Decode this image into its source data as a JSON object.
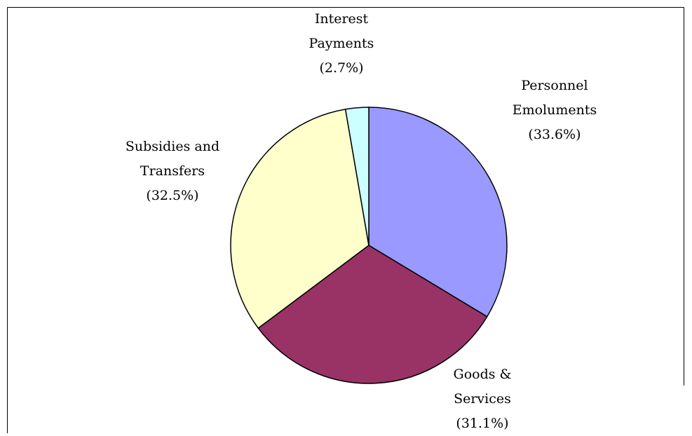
{
  "chart_data": {
    "type": "pie",
    "categories": [
      "Personnel Emoluments",
      "Goods & Services",
      "Subsidies and Transfers",
      "Interest Payments"
    ],
    "values": [
      33.6,
      31.1,
      32.5,
      2.7
    ],
    "value_labels": [
      "(33.6%)",
      "(31.1%)",
      "(32.5%)",
      "(2.7%)"
    ],
    "colors": [
      "#9999ff",
      "#993366",
      "#ffffcc",
      "#ccffff"
    ]
  }
}
